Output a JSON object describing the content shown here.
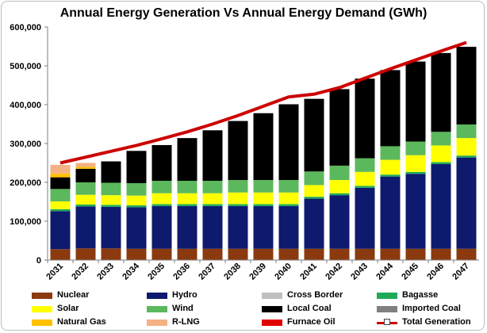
{
  "chart_data": {
    "type": "bar",
    "stacked": true,
    "title": "Annual Energy Generation Vs Annual Energy Demand (GWh)",
    "ylim": [
      0,
      600000
    ],
    "y_ticks": [
      "0",
      "100,000",
      "200,000",
      "300,000",
      "400,000",
      "500,000",
      "600,000"
    ],
    "grid": false,
    "legend_position": "bottom",
    "categories": [
      "2031",
      "2032",
      "2033",
      "2034",
      "2035",
      "2036",
      "2037",
      "2038",
      "2039",
      "2040",
      "2041",
      "2042",
      "2043",
      "2044",
      "2045",
      "2046",
      "2047"
    ],
    "series": [
      {
        "name": "Nuclear",
        "color": "#8b3a0f",
        "values": [
          28000,
          30000,
          30000,
          29000,
          29000,
          29000,
          29000,
          29000,
          29000,
          29000,
          29000,
          29000,
          29000,
          29000,
          29000,
          29000,
          29000
        ]
      },
      {
        "name": "Hydro",
        "color": "#0d1a6e",
        "values": [
          98000,
          108000,
          107000,
          107000,
          110000,
          110000,
          110000,
          110000,
          110000,
          110000,
          129000,
          138000,
          157000,
          186000,
          193000,
          218000,
          235000
        ]
      },
      {
        "name": "Cross Border",
        "color": "#bfbfbf",
        "values": [
          0,
          0,
          0,
          0,
          0,
          0,
          0,
          0,
          0,
          0,
          0,
          0,
          0,
          0,
          0,
          0,
          0
        ]
      },
      {
        "name": "Bagasse",
        "color": "#1faa5a",
        "values": [
          5000,
          5000,
          5000,
          5000,
          5000,
          5000,
          5000,
          5000,
          5000,
          5000,
          5000,
          5000,
          5000,
          5000,
          5000,
          5000,
          5000
        ]
      },
      {
        "name": "Solar",
        "color": "#ffff00",
        "values": [
          20000,
          25000,
          25000,
          25000,
          28000,
          28000,
          28000,
          30000,
          30000,
          30000,
          30000,
          34000,
          36000,
          38000,
          43000,
          43000,
          45000
        ]
      },
      {
        "name": "Wind",
        "color": "#5cb85c",
        "values": [
          32000,
          32000,
          32000,
          32000,
          32000,
          32000,
          32000,
          32000,
          32000,
          32000,
          35000,
          37000,
          35000,
          35000,
          35000,
          35000,
          35000
        ]
      },
      {
        "name": "Local Coal",
        "color": "#000000",
        "values": [
          30000,
          35000,
          55000,
          83000,
          92000,
          110000,
          130000,
          152000,
          172000,
          195000,
          187000,
          197000,
          205000,
          196000,
          206000,
          203000,
          200000
        ]
      },
      {
        "name": "Imported Coal",
        "color": "#808080",
        "values": [
          0,
          0,
          0,
          0,
          0,
          0,
          0,
          0,
          0,
          0,
          0,
          0,
          0,
          0,
          0,
          0,
          0
        ]
      },
      {
        "name": "Natural Gas",
        "color": "#ffc000",
        "values": [
          10000,
          5000,
          0,
          0,
          0,
          0,
          0,
          0,
          0,
          0,
          0,
          0,
          0,
          0,
          0,
          0,
          0
        ]
      },
      {
        "name": "R-LNG",
        "color": "#f4b183",
        "values": [
          22000,
          10000,
          0,
          0,
          0,
          0,
          0,
          0,
          0,
          0,
          0,
          0,
          0,
          0,
          0,
          0,
          0
        ]
      },
      {
        "name": "Furnace Oil",
        "color": "#e00000",
        "values": [
          0,
          0,
          0,
          0,
          0,
          0,
          0,
          0,
          0,
          0,
          0,
          0,
          0,
          0,
          0,
          0,
          0
        ]
      }
    ],
    "line_series": {
      "name": "Total Generation",
      "color": "#cc0000",
      "values": [
        250000,
        265000,
        280000,
        295000,
        312000,
        330000,
        350000,
        372000,
        396000,
        420000,
        427000,
        444000,
        468000,
        492000,
        515000,
        538000,
        560000
      ]
    }
  }
}
